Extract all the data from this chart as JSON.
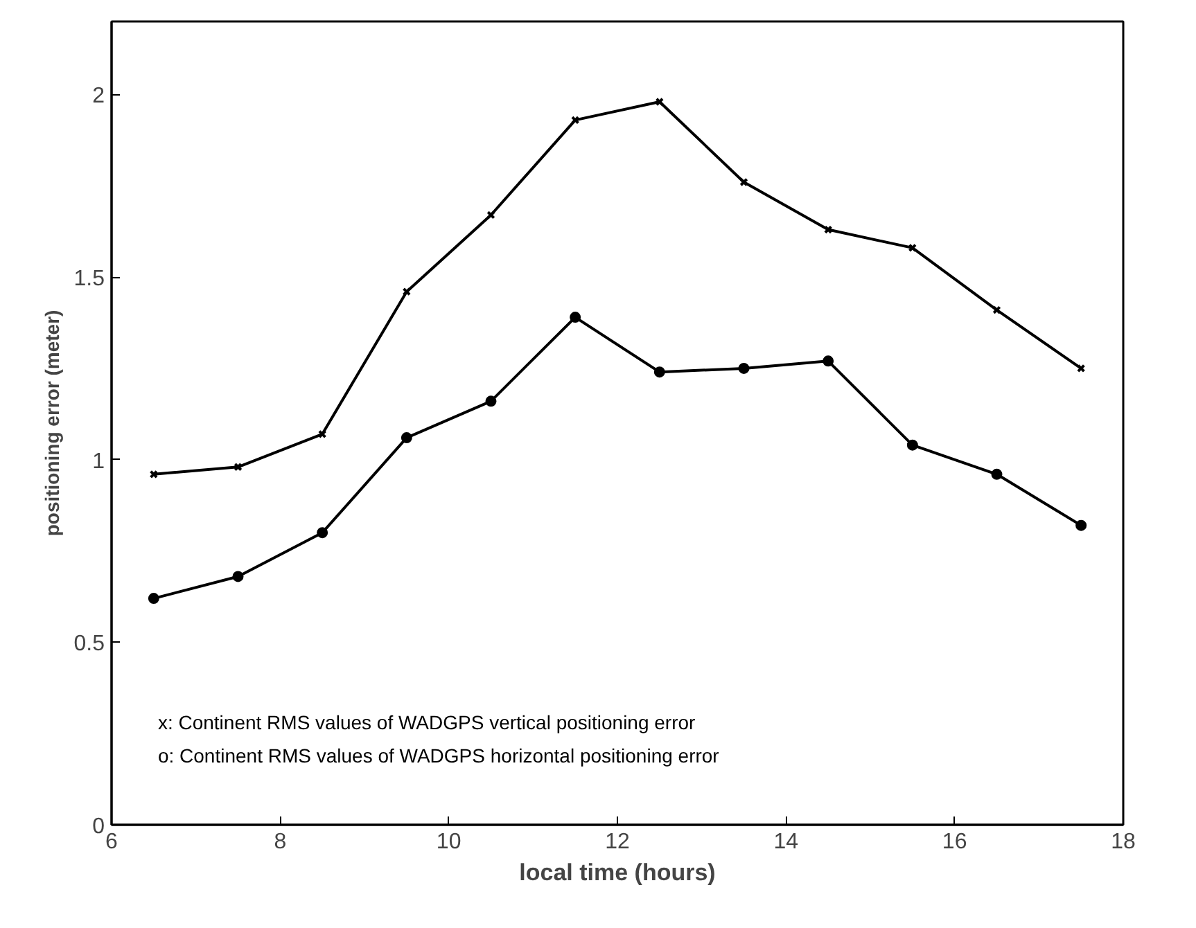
{
  "chart_data": {
    "type": "line",
    "xlabel": "local time (hours)",
    "ylabel": "positioning error (meter)",
    "x": [
      6.5,
      7.5,
      8.5,
      9.5,
      10.5,
      11.5,
      12.5,
      13.5,
      14.5,
      15.5,
      16.5,
      17.5
    ],
    "series": [
      {
        "color": "#000000",
        "marker": "cross",
        "values": [
          0.96,
          0.98,
          1.07,
          1.46,
          1.67,
          1.93,
          1.98,
          1.76,
          1.63,
          1.58,
          1.41,
          1.25
        ]
      },
      {
        "color": "#000000",
        "marker": "circle",
        "values": [
          0.62,
          0.68,
          0.8,
          1.06,
          1.16,
          1.39,
          1.24,
          1.25,
          1.27,
          1.04,
          0.96,
          0.82
        ]
      }
    ],
    "xlim": [
      6,
      18
    ],
    "ylim": [
      0,
      2.2
    ],
    "xticks": [
      6,
      8,
      10,
      12,
      14,
      16,
      18
    ],
    "yticks": [
      0,
      0.5,
      1,
      1.5,
      2
    ],
    "grid": false,
    "line_style": "solid",
    "annotations": [
      "x: Continent RMS values of WADGPS vertical positioning error",
      "o: Continent RMS values of WADGPS horizontal positioning error"
    ]
  }
}
